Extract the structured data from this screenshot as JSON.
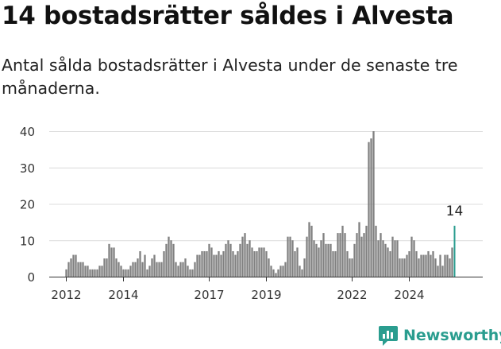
{
  "title": "14 bostadsrätter såldes i Alvesta",
  "subtitle": "Antal sålda bostadsrätter i Alvesta under de senaste tre månaderna.",
  "brand": {
    "name": "Newsworthy",
    "color": "#2a9d8f"
  },
  "chart_data": {
    "type": "bar",
    "x_start": "2012-01",
    "x_tick_labels": [
      "2012",
      "2014",
      "2017",
      "2019",
      "2022",
      "2024"
    ],
    "x_tick_dates": [
      "2012-01",
      "2014-01",
      "2017-01",
      "2019-01",
      "2022-01",
      "2024-01"
    ],
    "y_ticks": [
      0,
      10,
      20,
      30,
      40
    ],
    "ylim": [
      0,
      40
    ],
    "grid": true,
    "bar_color": "#808080",
    "highlight_color": "#2a9d8f",
    "highlight_label": "14",
    "values": [
      2,
      4,
      5,
      6,
      6,
      4,
      4,
      4,
      3,
      3,
      2,
      2,
      2,
      2,
      3,
      3,
      5,
      5,
      9,
      8,
      8,
      5,
      4,
      3,
      2,
      2,
      2,
      3,
      4,
      4,
      5,
      7,
      4,
      6,
      2,
      3,
      5,
      6,
      4,
      4,
      4,
      7,
      9,
      11,
      10,
      9,
      4,
      3,
      4,
      4,
      5,
      3,
      2,
      2,
      4,
      6,
      6,
      7,
      7,
      7,
      9,
      8,
      6,
      6,
      7,
      6,
      7,
      9,
      10,
      9,
      7,
      6,
      7,
      9,
      11,
      12,
      9,
      10,
      8,
      7,
      7,
      8,
      8,
      8,
      7,
      5,
      3,
      2,
      1,
      2,
      3,
      3,
      4,
      11,
      11,
      10,
      7,
      8,
      3,
      2,
      5,
      11,
      15,
      14,
      10,
      9,
      8,
      10,
      12,
      9,
      9,
      9,
      7,
      7,
      12,
      12,
      14,
      12,
      7,
      5,
      5,
      9,
      12,
      15,
      11,
      12,
      14,
      37,
      38,
      40,
      14,
      10,
      12,
      10,
      9,
      8,
      7,
      11,
      10,
      10,
      5,
      5,
      5,
      6,
      7,
      11,
      10,
      7,
      5,
      6,
      6,
      6,
      7,
      6,
      7,
      5,
      3,
      6,
      3,
      6,
      6,
      5,
      8,
      14
    ]
  }
}
